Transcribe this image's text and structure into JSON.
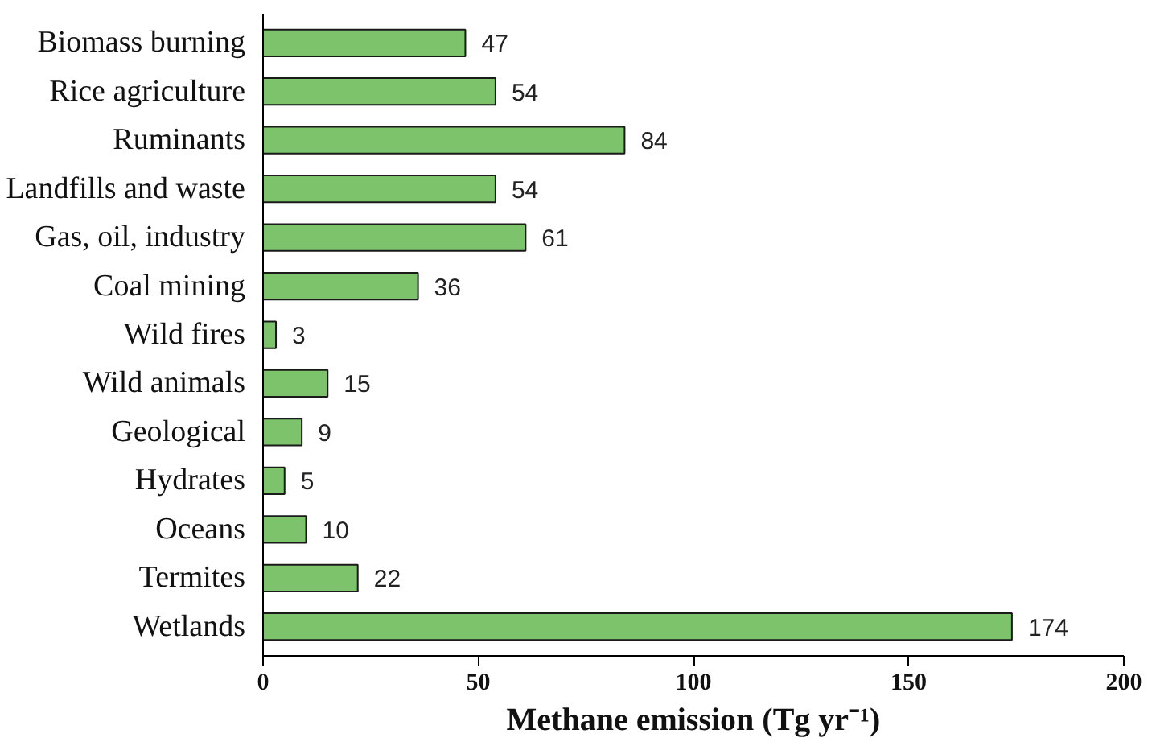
{
  "chart_data": {
    "type": "bar",
    "orientation": "horizontal",
    "xlabel": "Methane emission (Tg yr⁻¹)",
    "categories": [
      "Biomass burning",
      "Rice agriculture",
      "Ruminants",
      "Landfills and waste",
      "Gas, oil, industry",
      "Coal mining",
      "Wild fires",
      "Wild animals",
      "Geological",
      "Hydrates",
      "Oceans",
      "Termites",
      "Wetlands"
    ],
    "values": [
      47,
      54,
      84,
      54,
      61,
      36,
      3,
      15,
      9,
      5,
      10,
      22,
      174
    ],
    "color": "#7dc36b",
    "xlim": [
      0,
      200
    ],
    "xticks": [
      0,
      50,
      100,
      150,
      200
    ],
    "data_labels": true,
    "grid": false
  }
}
